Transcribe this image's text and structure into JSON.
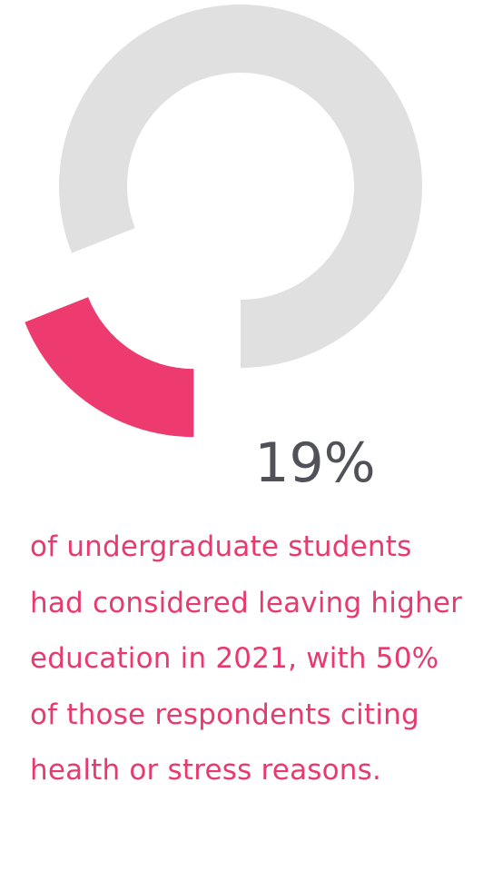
{
  "chart_data": {
    "type": "pie",
    "donut": true,
    "values": [
      19,
      81
    ],
    "value_labels": [
      "19%",
      null
    ],
    "colors": [
      "#ee3b6f",
      "#e0e0e0"
    ],
    "caption": "of undergraduate students had considered leaving higher education in 2021, with 50% of those respondents citing health or stress reasons."
  }
}
